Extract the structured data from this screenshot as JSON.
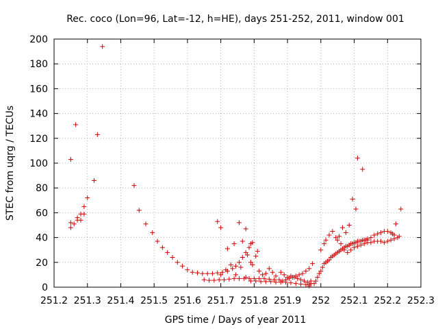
{
  "chart_data": {
    "type": "scatter",
    "title": "Rec. coco (Lon=96, Lat=-12, h=HE), days 251-252, 2011, window 001",
    "xlabel": "GPS time / Days of year 2011",
    "ylabel": "STEC from uqrg / TECUs",
    "xlim": [
      251.2,
      252.3
    ],
    "ylim": [
      0,
      200
    ],
    "xticks": [
      "251.2",
      "251.3",
      "251.4",
      "251.5",
      "251.6",
      "251.7",
      "251.8",
      "251.9",
      "252",
      "252.1",
      "252.2",
      "252.3"
    ],
    "yticks": [
      "0",
      "20",
      "40",
      "60",
      "80",
      "100",
      "120",
      "140",
      "160",
      "180",
      "200"
    ],
    "grid": true,
    "marker": "+",
    "color": "#d00000",
    "points": [
      [
        251.25,
        48
      ],
      [
        251.25,
        52
      ],
      [
        251.25,
        103
      ],
      [
        251.26,
        51
      ],
      [
        251.265,
        131
      ],
      [
        251.27,
        56
      ],
      [
        251.27,
        54
      ],
      [
        251.28,
        59
      ],
      [
        251.28,
        54
      ],
      [
        251.29,
        59
      ],
      [
        251.29,
        65
      ],
      [
        251.3,
        72
      ],
      [
        251.32,
        86
      ],
      [
        251.33,
        123
      ],
      [
        251.345,
        194
      ],
      [
        251.44,
        82
      ],
      [
        251.455,
        62
      ],
      [
        251.475,
        51
      ],
      [
        251.495,
        44
      ],
      [
        251.51,
        37
      ],
      [
        251.525,
        32
      ],
      [
        251.54,
        28
      ],
      [
        251.555,
        24
      ],
      [
        251.57,
        20
      ],
      [
        251.585,
        17
      ],
      [
        251.6,
        14
      ],
      [
        251.615,
        12
      ],
      [
        251.63,
        11.5
      ],
      [
        251.645,
        11
      ],
      [
        251.66,
        11
      ],
      [
        251.675,
        11
      ],
      [
        251.69,
        11.5
      ],
      [
        251.705,
        12
      ],
      [
        251.72,
        13
      ],
      [
        251.735,
        15
      ],
      [
        251.745,
        17
      ],
      [
        251.755,
        20
      ],
      [
        251.765,
        24
      ],
      [
        251.775,
        28
      ],
      [
        251.785,
        32
      ],
      [
        251.79,
        35
      ],
      [
        251.795,
        36
      ],
      [
        251.69,
        53
      ],
      [
        251.7,
        48
      ],
      [
        251.72,
        31
      ],
      [
        251.74,
        35
      ],
      [
        251.755,
        52
      ],
      [
        251.765,
        37
      ],
      [
        251.775,
        47
      ],
      [
        251.78,
        26
      ],
      [
        251.65,
        6
      ],
      [
        251.665,
        5.5
      ],
      [
        251.68,
        5.5
      ],
      [
        251.695,
        6
      ],
      [
        251.71,
        6
      ],
      [
        251.725,
        6.5
      ],
      [
        251.74,
        7
      ],
      [
        251.755,
        7
      ],
      [
        251.77,
        7
      ],
      [
        251.785,
        7
      ],
      [
        251.8,
        7
      ],
      [
        251.815,
        7
      ],
      [
        251.83,
        7
      ],
      [
        251.845,
        6.5
      ],
      [
        251.86,
        6
      ],
      [
        251.7,
        10
      ],
      [
        251.715,
        14
      ],
      [
        251.73,
        18
      ],
      [
        251.745,
        10
      ],
      [
        251.76,
        16
      ],
      [
        251.775,
        8
      ],
      [
        251.79,
        20
      ],
      [
        251.795,
        18
      ],
      [
        251.805,
        25
      ],
      [
        251.81,
        29
      ],
      [
        251.815,
        13
      ],
      [
        251.825,
        10
      ],
      [
        251.835,
        11
      ],
      [
        251.845,
        15
      ],
      [
        251.855,
        12
      ],
      [
        251.865,
        9
      ],
      [
        251.875,
        6
      ],
      [
        251.885,
        5
      ],
      [
        251.895,
        6
      ],
      [
        251.905,
        7
      ],
      [
        251.915,
        8
      ],
      [
        251.925,
        9
      ],
      [
        251.935,
        10
      ],
      [
        251.945,
        11
      ],
      [
        251.955,
        13
      ],
      [
        251.965,
        15
      ],
      [
        251.975,
        19
      ],
      [
        251.79,
        5
      ],
      [
        251.805,
        5
      ],
      [
        251.82,
        4.5
      ],
      [
        251.835,
        4.5
      ],
      [
        251.85,
        4.5
      ],
      [
        251.865,
        4
      ],
      [
        251.88,
        4
      ],
      [
        251.895,
        4
      ],
      [
        251.91,
        3.5
      ],
      [
        251.925,
        3
      ],
      [
        251.94,
        2.5
      ],
      [
        251.955,
        2
      ],
      [
        251.965,
        1
      ],
      [
        251.97,
        3
      ],
      [
        251.88,
        12
      ],
      [
        251.89,
        10
      ],
      [
        251.9,
        8
      ],
      [
        251.91,
        9
      ],
      [
        251.92,
        8
      ],
      [
        251.93,
        7
      ],
      [
        251.94,
        6
      ],
      [
        251.95,
        5
      ],
      [
        251.96,
        4
      ],
      [
        251.965,
        2
      ],
      [
        251.97,
        5
      ],
      [
        251.98,
        3
      ],
      [
        251.985,
        5
      ],
      [
        251.99,
        8
      ],
      [
        251.995,
        11
      ],
      [
        252.0,
        13
      ],
      [
        252.005,
        16
      ],
      [
        252.01,
        19
      ],
      [
        252.015,
        20
      ],
      [
        252.02,
        21
      ],
      [
        252.025,
        22
      ],
      [
        252.03,
        24
      ],
      [
        252.035,
        25
      ],
      [
        252.04,
        26
      ],
      [
        252.045,
        27
      ],
      [
        252.05,
        28
      ],
      [
        252.055,
        29
      ],
      [
        252.06,
        30
      ],
      [
        252.065,
        31
      ],
      [
        252.07,
        32
      ],
      [
        252.075,
        33
      ],
      [
        252.08,
        33
      ],
      [
        252.085,
        34
      ],
      [
        252.09,
        35
      ],
      [
        252.095,
        35
      ],
      [
        252.1,
        36
      ],
      [
        252.105,
        36
      ],
      [
        252.11,
        37
      ],
      [
        252.115,
        37
      ],
      [
        252.12,
        37
      ],
      [
        252.125,
        38
      ],
      [
        252.13,
        38
      ],
      [
        252.135,
        38
      ],
      [
        252.14,
        38
      ],
      [
        252.0,
        30
      ],
      [
        252.01,
        35
      ],
      [
        252.015,
        38
      ],
      [
        252.025,
        42
      ],
      [
        252.035,
        45
      ],
      [
        252.045,
        40
      ],
      [
        252.055,
        41
      ],
      [
        252.065,
        48
      ],
      [
        252.075,
        44
      ],
      [
        252.085,
        50
      ],
      [
        252.095,
        71
      ],
      [
        252.105,
        63
      ],
      [
        252.11,
        104
      ],
      [
        252.125,
        95
      ],
      [
        252.05,
        38
      ],
      [
        252.06,
        35
      ],
      [
        252.07,
        30
      ],
      [
        252.08,
        28
      ],
      [
        252.09,
        30
      ],
      [
        252.1,
        32
      ],
      [
        252.11,
        33
      ],
      [
        252.12,
        34
      ],
      [
        252.13,
        35
      ],
      [
        252.14,
        36
      ],
      [
        252.15,
        36
      ],
      [
        252.16,
        37
      ],
      [
        252.17,
        37
      ],
      [
        252.18,
        37
      ],
      [
        252.19,
        36
      ],
      [
        252.2,
        37
      ],
      [
        252.21,
        38
      ],
      [
        252.22,
        39
      ],
      [
        252.23,
        40
      ],
      [
        252.14,
        39
      ],
      [
        252.15,
        40
      ],
      [
        252.16,
        42
      ],
      [
        252.17,
        43
      ],
      [
        252.18,
        44
      ],
      [
        252.19,
        45
      ],
      [
        252.2,
        45
      ],
      [
        252.21,
        44
      ],
      [
        252.215,
        43
      ],
      [
        252.22,
        42
      ],
      [
        252.225,
        51
      ],
      [
        252.235,
        41
      ],
      [
        252.24,
        63
      ]
    ]
  }
}
